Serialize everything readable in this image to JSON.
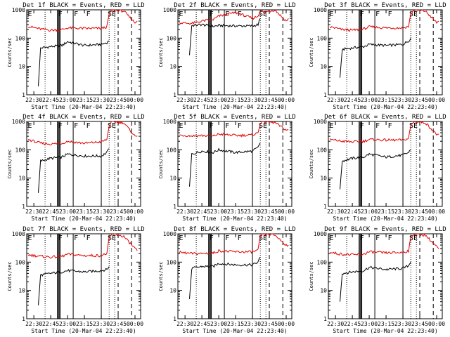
{
  "colors": {
    "events": "#000000",
    "lld": "#e00000",
    "axis": "#000000"
  },
  "chart_data": [
    {
      "type": "line",
      "title": "Det 1f BLACK = Events, RED = LLD",
      "xlabel": "Start Time (20-Mar-04 22:23:40)",
      "ylabel": "Counts/sec",
      "yscale": "log",
      "ylim": [
        1,
        1000
      ],
      "x_ticks": [
        "22:30",
        "22:45",
        "23:00",
        "23:15",
        "23:30",
        "23:45",
        "00:00"
      ],
      "y_ticks": [
        "1",
        "10",
        "100",
        "1000"
      ],
      "annotations": [
        "E",
        "F",
        "F",
        "F",
        "SE"
      ],
      "series": [
        {
          "name": "Events",
          "color": "#000000",
          "x": [
            "22:34",
            "22:36",
            "22:45",
            "22:55",
            "23:00",
            "23:15",
            "23:30",
            "23:35",
            "23:37",
            "23:40"
          ],
          "values": [
            2,
            45,
            50,
            55,
            75,
            55,
            60,
            70,
            80,
            null
          ]
        },
        {
          "name": "LLD",
          "color": "#e00000",
          "x": [
            "22:25",
            "22:36",
            "22:45",
            "22:55",
            "23:00",
            "23:15",
            "23:30",
            "23:35",
            "23:37",
            "23:40",
            "23:50",
            "00:00",
            "00:02"
          ],
          "values": [
            260,
            210,
            190,
            200,
            230,
            220,
            220,
            250,
            700,
            1000,
            900,
            350,
            400
          ]
        }
      ]
    },
    {
      "type": "line",
      "title": "Det 2f BLACK = Events, RED = LLD",
      "xlabel": "Start Time (20-Mar-04 22:23:40)",
      "ylabel": "Counts/sec",
      "yscale": "log",
      "ylim": [
        1,
        1000
      ],
      "x_ticks": [
        "22:30",
        "22:45",
        "23:00",
        "23:15",
        "23:30",
        "23:45",
        "00:00"
      ],
      "y_ticks": [
        "1",
        "10",
        "100",
        "1000"
      ],
      "annotations": [
        "E",
        "F",
        "F",
        "F",
        "SE"
      ],
      "series": [
        {
          "name": "Events",
          "color": "#000000",
          "x": [
            "22:34",
            "22:36",
            "22:45",
            "22:55",
            "23:00",
            "23:15",
            "23:30",
            "23:35",
            "23:37",
            "23:40"
          ],
          "values": [
            25,
            280,
            300,
            260,
            280,
            270,
            270,
            300,
            500,
            null
          ]
        },
        {
          "name": "LLD",
          "color": "#e00000",
          "x": [
            "22:25",
            "22:36",
            "22:45",
            "22:55",
            "23:00",
            "23:15",
            "23:30",
            "23:35",
            "23:37",
            "23:40",
            "23:50",
            "00:00",
            "00:02"
          ],
          "values": [
            350,
            330,
            400,
            450,
            600,
            800,
            500,
            600,
            1000,
            800,
            1000,
            400,
            500
          ]
        }
      ]
    },
    {
      "type": "line",
      "title": "Det 3f BLACK = Events, RED = LLD",
      "xlabel": "Start Time (20-Mar-04 22:23:40)",
      "ylabel": "Counts/sec",
      "yscale": "log",
      "ylim": [
        1,
        1000
      ],
      "x_ticks": [
        "22:30",
        "22:45",
        "23:00",
        "23:15",
        "23:30",
        "23:45",
        "00:00"
      ],
      "y_ticks": [
        "1",
        "10",
        "100",
        "1000"
      ],
      "annotations": [
        "E",
        "F",
        "F",
        "F",
        "SE"
      ],
      "series": [
        {
          "name": "Events",
          "color": "#000000",
          "x": [
            "22:34",
            "22:36",
            "22:45",
            "22:55",
            "23:00",
            "23:15",
            "23:30",
            "23:35",
            "23:37",
            "23:40"
          ],
          "values": [
            4,
            40,
            45,
            50,
            60,
            55,
            60,
            80,
            100,
            null
          ]
        },
        {
          "name": "LLD",
          "color": "#e00000",
          "x": [
            "22:25",
            "22:36",
            "22:45",
            "22:55",
            "23:00",
            "23:15",
            "23:30",
            "23:35",
            "23:37",
            "23:40",
            "23:50",
            "00:00",
            "00:02"
          ],
          "values": [
            250,
            200,
            190,
            210,
            250,
            230,
            230,
            260,
            700,
            1000,
            900,
            350,
            400
          ]
        }
      ]
    },
    {
      "type": "line",
      "title": "Det 4f BLACK = Events, RED = LLD",
      "xlabel": "Start Time (20-Mar-04 22:23:40)",
      "ylabel": "Counts/sec",
      "yscale": "log",
      "ylim": [
        1,
        1000
      ],
      "x_ticks": [
        "22:30",
        "22:45",
        "23:00",
        "23:15",
        "23:30",
        "23:45",
        "00:00"
      ],
      "y_ticks": [
        "1",
        "10",
        "100",
        "1000"
      ],
      "annotations": [
        "E",
        "F",
        "F",
        "F",
        "SE"
      ],
      "series": [
        {
          "name": "Events",
          "color": "#000000",
          "x": [
            "22:34",
            "22:36",
            "22:45",
            "22:55",
            "23:00",
            "23:15",
            "23:30",
            "23:35",
            "23:37",
            "23:40"
          ],
          "values": [
            3,
            40,
            50,
            55,
            70,
            60,
            60,
            80,
            110,
            null
          ]
        },
        {
          "name": "LLD",
          "color": "#e00000",
          "x": [
            "22:25",
            "22:36",
            "22:45",
            "22:55",
            "23:00",
            "23:15",
            "23:30",
            "23:35",
            "23:37",
            "23:40",
            "23:50",
            "00:00",
            "00:02"
          ],
          "values": [
            230,
            170,
            160,
            170,
            200,
            170,
            190,
            230,
            700,
            1000,
            900,
            300,
            300
          ]
        }
      ]
    },
    {
      "type": "line",
      "title": "Det 5f BLACK = Events, RED = LLD",
      "xlabel": "Start Time (20-Mar-04 22:23:40)",
      "ylabel": "Counts/sec",
      "yscale": "log",
      "ylim": [
        1,
        1000
      ],
      "x_ticks": [
        "22:30",
        "22:45",
        "23:00",
        "23:15",
        "23:30",
        "23:45",
        "00:00"
      ],
      "y_ticks": [
        "1",
        "10",
        "100",
        "1000"
      ],
      "annotations": [
        "E",
        "F",
        "F",
        "F",
        "SE"
      ],
      "series": [
        {
          "name": "Events",
          "color": "#000000",
          "x": [
            "22:34",
            "22:36",
            "22:45",
            "22:55",
            "23:00",
            "23:15",
            "23:30",
            "23:35",
            "23:37",
            "23:40"
          ],
          "values": [
            5,
            70,
            90,
            80,
            100,
            80,
            90,
            120,
            180,
            null
          ]
        },
        {
          "name": "LLD",
          "color": "#e00000",
          "x": [
            "22:25",
            "22:36",
            "22:45",
            "22:55",
            "23:00",
            "23:15",
            "23:30",
            "23:35",
            "23:37",
            "23:40",
            "23:50",
            "00:00",
            "00:02"
          ],
          "values": [
            330,
            310,
            320,
            300,
            360,
            320,
            330,
            400,
            900,
            1000,
            900,
            500,
            500
          ]
        }
      ]
    },
    {
      "type": "line",
      "title": "Det 6f BLACK = Events, RED = LLD",
      "xlabel": "Start Time (20-Mar-04 22:23:40)",
      "ylabel": "Counts/sec",
      "yscale": "log",
      "ylim": [
        1,
        1000
      ],
      "x_ticks": [
        "22:30",
        "22:45",
        "23:00",
        "23:15",
        "23:30",
        "23:45",
        "00:00"
      ],
      "y_ticks": [
        "1",
        "10",
        "100",
        "1000"
      ],
      "annotations": [
        "E",
        "F",
        "F",
        "F",
        "SE"
      ],
      "series": [
        {
          "name": "Events",
          "color": "#000000",
          "x": [
            "22:34",
            "22:36",
            "22:45",
            "22:55",
            "23:00",
            "23:15",
            "23:30",
            "23:35",
            "23:37",
            "23:40"
          ],
          "values": [
            4,
            40,
            50,
            55,
            70,
            55,
            65,
            80,
            100,
            null
          ]
        },
        {
          "name": "LLD",
          "color": "#e00000",
          "x": [
            "22:25",
            "22:36",
            "22:45",
            "22:55",
            "23:00",
            "23:15",
            "23:30",
            "23:35",
            "23:37",
            "23:40",
            "23:50",
            "00:00",
            "00:02"
          ],
          "values": [
            230,
            200,
            190,
            200,
            230,
            220,
            220,
            250,
            700,
            1000,
            900,
            350,
            350
          ]
        }
      ]
    },
    {
      "type": "line",
      "title": "Det 7f BLACK = Events, RED = LLD",
      "xlabel": "Start Time (20-Mar-04 22:23:40)",
      "ylabel": "Counts/sec",
      "yscale": "log",
      "ylim": [
        1,
        1000
      ],
      "x_ticks": [
        "22:30",
        "22:45",
        "23:00",
        "23:15",
        "23:30",
        "23:45",
        "00:00"
      ],
      "y_ticks": [
        "1",
        "10",
        "100",
        "1000"
      ],
      "annotations": [
        "E",
        "F",
        "F",
        "F",
        "SE"
      ],
      "series": [
        {
          "name": "Events",
          "color": "#000000",
          "x": [
            "22:34",
            "22:36",
            "22:45",
            "22:55",
            "23:00",
            "23:15",
            "23:30",
            "23:35",
            "23:37",
            "23:40"
          ],
          "values": [
            3,
            35,
            40,
            45,
            50,
            45,
            50,
            55,
            70,
            null
          ]
        },
        {
          "name": "LLD",
          "color": "#e00000",
          "x": [
            "22:25",
            "22:36",
            "22:45",
            "22:55",
            "23:00",
            "23:15",
            "23:30",
            "23:35",
            "23:37",
            "23:40",
            "23:50",
            "00:00",
            "00:02"
          ],
          "values": [
            180,
            160,
            150,
            160,
            190,
            170,
            170,
            200,
            700,
            1000,
            800,
            300,
            250
          ]
        }
      ]
    },
    {
      "type": "line",
      "title": "Det 8f BLACK = Events, RED = LLD",
      "xlabel": "Start Time (20-Mar-04 22:23:40)",
      "ylabel": "Counts/sec",
      "yscale": "log",
      "ylim": [
        1,
        1000
      ],
      "x_ticks": [
        "22:30",
        "22:45",
        "23:00",
        "23:15",
        "23:30",
        "23:45",
        "00:00"
      ],
      "y_ticks": [
        "1",
        "10",
        "100",
        "1000"
      ],
      "annotations": [
        "E",
        "F",
        "F",
        "F",
        "SE"
      ],
      "series": [
        {
          "name": "Events",
          "color": "#000000",
          "x": [
            "22:34",
            "22:36",
            "22:45",
            "22:55",
            "23:00",
            "23:15",
            "23:30",
            "23:35",
            "23:37",
            "23:40"
          ],
          "values": [
            5,
            60,
            70,
            70,
            90,
            80,
            80,
            100,
            150,
            null
          ]
        },
        {
          "name": "LLD",
          "color": "#e00000",
          "x": [
            "22:25",
            "22:36",
            "22:45",
            "22:55",
            "23:00",
            "23:15",
            "23:30",
            "23:35",
            "23:37",
            "23:40",
            "23:50",
            "00:00",
            "00:02"
          ],
          "values": [
            220,
            200,
            200,
            210,
            250,
            230,
            230,
            260,
            800,
            1000,
            900,
            400,
            400
          ]
        }
      ]
    },
    {
      "type": "line",
      "title": "Det 9f BLACK = Events, RED = LLD",
      "xlabel": "Start Time (20-Mar-04 22:23:40)",
      "ylabel": "Counts/sec",
      "yscale": "log",
      "ylim": [
        1,
        1000
      ],
      "x_ticks": [
        "22:30",
        "22:45",
        "23:00",
        "23:15",
        "23:30",
        "23:45",
        "00:00"
      ],
      "y_ticks": [
        "1",
        "10",
        "100",
        "1000"
      ],
      "annotations": [
        "E",
        "F",
        "F",
        "F",
        "SE"
      ],
      "series": [
        {
          "name": "Events",
          "color": "#000000",
          "x": [
            "22:34",
            "22:36",
            "22:45",
            "22:55",
            "23:00",
            "23:15",
            "23:30",
            "23:35",
            "23:37",
            "23:40"
          ],
          "values": [
            4,
            40,
            45,
            50,
            65,
            55,
            60,
            75,
            100,
            null
          ]
        },
        {
          "name": "LLD",
          "color": "#e00000",
          "x": [
            "22:25",
            "22:36",
            "22:45",
            "22:55",
            "23:00",
            "23:15",
            "23:30",
            "23:35",
            "23:37",
            "23:40",
            "23:50",
            "00:00",
            "00:02"
          ],
          "values": [
            220,
            190,
            180,
            190,
            230,
            210,
            220,
            250,
            700,
            1000,
            900,
            350,
            300
          ]
        }
      ]
    }
  ]
}
